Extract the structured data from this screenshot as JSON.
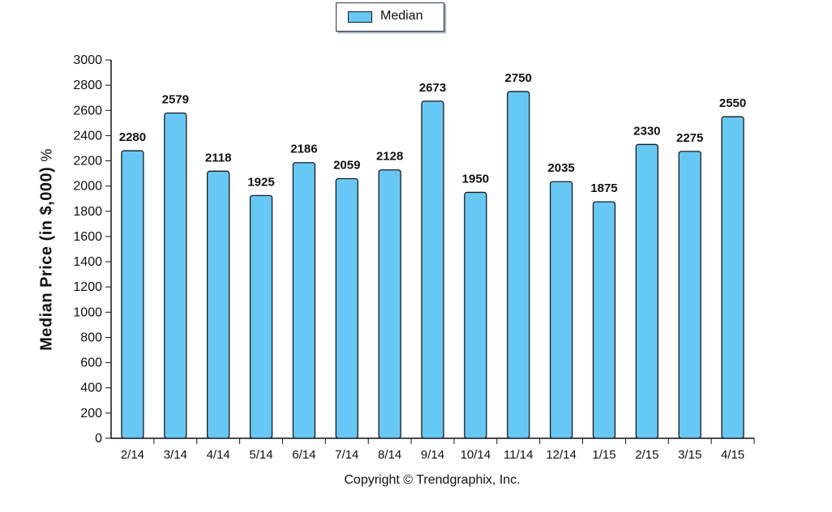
{
  "legend": {
    "label": "Median"
  },
  "footer": {
    "copyright": "Copyright © Trendgraphix, Inc."
  },
  "chart_data": {
    "type": "bar",
    "title": "",
    "xlabel": "",
    "ylabel": "Median Price (in $,000)",
    "ylabel_unit": "%",
    "ylim": [
      0,
      3000
    ],
    "yticks": [
      0,
      200,
      400,
      600,
      800,
      1000,
      1200,
      1400,
      1600,
      1800,
      2000,
      2200,
      2400,
      2600,
      2800,
      3000
    ],
    "categories": [
      "2/14",
      "3/14",
      "4/14",
      "5/14",
      "6/14",
      "7/14",
      "8/14",
      "9/14",
      "10/14",
      "11/14",
      "12/14",
      "1/15",
      "2/15",
      "3/15",
      "4/15"
    ],
    "series": [
      {
        "name": "Median",
        "color": "#66c8f5",
        "values": [
          2280,
          2579,
          2118,
          1925,
          2186,
          2059,
          2128,
          2673,
          1950,
          2750,
          2035,
          1875,
          2330,
          2275,
          2550
        ]
      }
    ],
    "legend_position": "top-center",
    "grid": false
  }
}
